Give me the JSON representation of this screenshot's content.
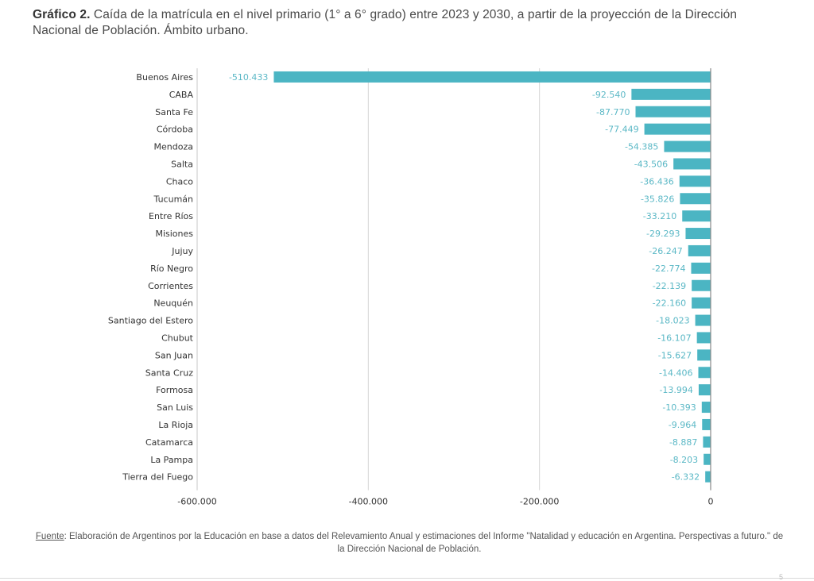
{
  "figure": {
    "title_bold": "Gráfico 2.",
    "title_text": "Caída de la matrícula en el nivel primario (1° a 6° grado) entre 2023 y 2030, a partir de la proyección de la Dirección Nacional de Población. Ámbito urbano.",
    "source_label": "Fuente",
    "source_text": ": Elaboración de Argentinos por la Educación en base a datos del Relevamiento Anual y estimaciones del Informe \"Natalidad y educación en Argentina. Perspectivas a futuro.\" de la Dirección Nacional de Población.",
    "page_mark": "5"
  },
  "chart_data": {
    "type": "bar",
    "orientation": "horizontal",
    "title": "Caída de la matrícula en el nivel primario (1° a 6° grado) entre 2023 y 2030, a partir de la proyección de la Dirección Nacional de Población. Ámbito urbano.",
    "xlabel": "",
    "ylabel": "",
    "categories": [
      "Buenos Aires",
      "CABA",
      "Santa Fe",
      "Córdoba",
      "Mendoza",
      "Salta",
      "Chaco",
      "Tucumán",
      "Entre Ríos",
      "Misiones",
      "Jujuy",
      "Río Negro",
      "Corrientes",
      "Neuquén",
      "Santiago del Estero",
      "Chubut",
      "San Juan",
      "Santa Cruz",
      "Formosa",
      "San Luis",
      "La Rioja",
      "Catamarca",
      "La Pampa",
      "Tierra del Fuego"
    ],
    "values": [
      -510433,
      -92540,
      -87770,
      -77449,
      -54385,
      -43506,
      -36436,
      -35826,
      -33210,
      -29293,
      -26247,
      -22774,
      -22139,
      -22160,
      -18023,
      -16107,
      -15627,
      -14406,
      -13994,
      -10393,
      -9964,
      -8887,
      -8203,
      -6332
    ],
    "value_labels": [
      "-510.433",
      "-92.540",
      "-87.770",
      "-77.449",
      "-54.385",
      "-43.506",
      "-36.436",
      "-35.826",
      "-33.210",
      "-29.293",
      "-26.247",
      "-22.774",
      "-22.139",
      "-22.160",
      "-18.023",
      "-16.107",
      "-15.627",
      "-14.406",
      "-13.994",
      "-10.393",
      "-9.964",
      "-8.887",
      "-8.203",
      "-6.332"
    ],
    "xlim": [
      -600000,
      0
    ],
    "xticks": [
      -600000,
      -400000,
      -200000,
      0
    ],
    "xtick_labels": [
      "-600.000",
      "-400.000",
      "-200.000",
      "0"
    ],
    "grid": true,
    "legend": "none",
    "bar_color": "#4bb5c3",
    "label_color": "#5bb8c6"
  }
}
